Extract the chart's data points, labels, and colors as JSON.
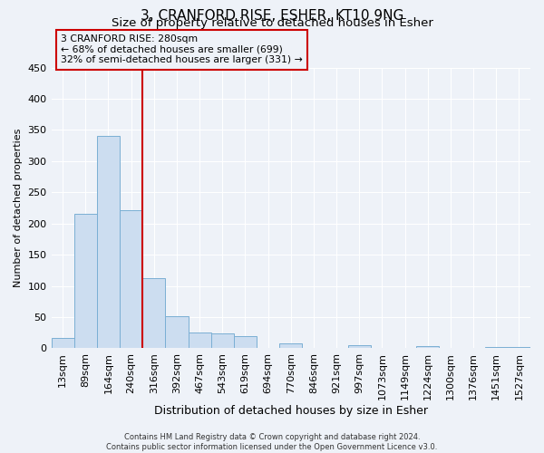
{
  "title": "3, CRANFORD RISE, ESHER, KT10 9NG",
  "subtitle": "Size of property relative to detached houses in Esher",
  "xlabel": "Distribution of detached houses by size in Esher",
  "ylabel": "Number of detached properties",
  "bar_labels": [
    "13sqm",
    "89sqm",
    "164sqm",
    "240sqm",
    "316sqm",
    "392sqm",
    "467sqm",
    "543sqm",
    "619sqm",
    "694sqm",
    "770sqm",
    "846sqm",
    "921sqm",
    "997sqm",
    "1073sqm",
    "1149sqm",
    "1224sqm",
    "1300sqm",
    "1376sqm",
    "1451sqm",
    "1527sqm"
  ],
  "bar_values": [
    17,
    215,
    340,
    222,
    113,
    52,
    25,
    24,
    20,
    0,
    8,
    0,
    0,
    5,
    0,
    0,
    3,
    0,
    0,
    2,
    2
  ],
  "bar_color": "#ccddf0",
  "bar_edge_color": "#7aafd4",
  "vline_color": "#cc0000",
  "ylim": [
    0,
    450
  ],
  "vline_pos": 3.5,
  "annotation_title": "3 CRANFORD RISE: 280sqm",
  "annotation_line1": "← 68% of detached houses are smaller (699)",
  "annotation_line2": "32% of semi-detached houses are larger (331) →",
  "annotation_box_color": "#cc0000",
  "footer1": "Contains HM Land Registry data © Crown copyright and database right 2024.",
  "footer2": "Contains public sector information licensed under the Open Government Licence v3.0.",
  "bg_color": "#eef2f8",
  "grid_color": "#ffffff",
  "title_fontsize": 11,
  "subtitle_fontsize": 9.5,
  "ylabel_fontsize": 8,
  "xlabel_fontsize": 9
}
